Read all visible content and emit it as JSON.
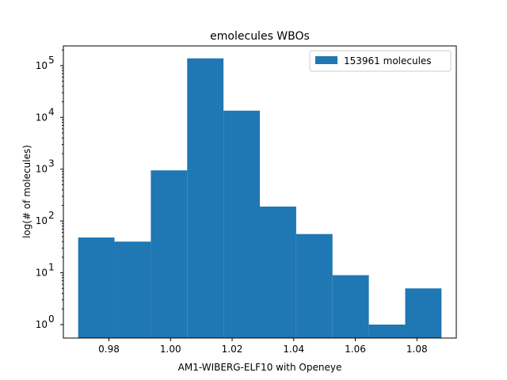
{
  "chart_data": {
    "type": "bar",
    "title": "emolecules WBOs",
    "xlabel": "AM1-WIBERG-ELF10 with Openeye",
    "ylabel": "log(# of molecules)",
    "yscale": "log",
    "xlim": [
      0.9652,
      1.0928
    ],
    "ylim": [
      0.55,
      240000
    ],
    "bin_edges": [
      0.97,
      0.9818,
      0.9936,
      1.0054,
      1.0172,
      1.029,
      1.0408,
      1.0526,
      1.0644,
      1.0762,
      1.088
    ],
    "counts": [
      48,
      40,
      950,
      138000,
      13500,
      190,
      56,
      9,
      1,
      5
    ],
    "x_ticks": [
      0.98,
      1.0,
      1.02,
      1.04,
      1.06,
      1.08
    ],
    "x_tick_labels": [
      "0.98",
      "1.00",
      "1.02",
      "1.04",
      "1.06",
      "1.08"
    ],
    "y_ticks": [
      1,
      10,
      100,
      1000,
      10000,
      100000
    ],
    "y_tick_bases": [
      "10",
      "10",
      "10",
      "10",
      "10",
      "10"
    ],
    "y_tick_exponents": [
      "0",
      "1",
      "2",
      "3",
      "4",
      "5"
    ],
    "series": [
      {
        "name": "153961 molecules",
        "color": "#1f77b4"
      }
    ],
    "legend_position": "top-right",
    "grid": false
  }
}
